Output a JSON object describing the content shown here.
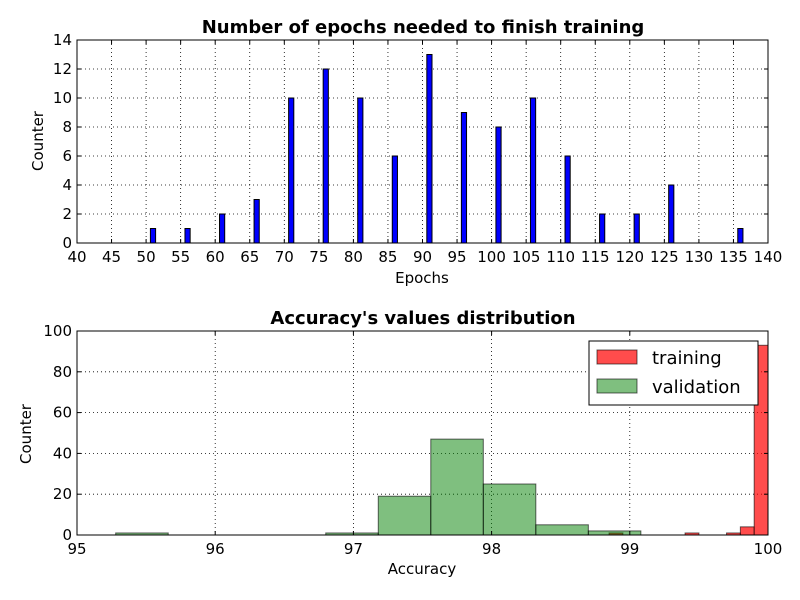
{
  "chart_data": [
    {
      "type": "bar",
      "title": "Number of epochs needed to finish training",
      "xlabel": "Epochs",
      "ylabel": "Counter",
      "xlim": [
        40,
        140
      ],
      "ylim": [
        0,
        14
      ],
      "x_ticks": [
        "40",
        "45",
        "50",
        "55",
        "60",
        "65",
        "70",
        "75",
        "80",
        "85",
        "90",
        "95",
        "100",
        "105",
        "110",
        "115",
        "120",
        "125",
        "130",
        "135",
        "140"
      ],
      "y_ticks": [
        "0",
        "2",
        "4",
        "6",
        "8",
        "10",
        "12",
        "14"
      ],
      "grid": true,
      "bar_color": "#0000ff",
      "x": [
        51,
        56,
        61,
        66,
        71,
        76,
        81,
        86,
        91,
        96,
        101,
        106,
        111,
        116,
        121,
        126,
        136
      ],
      "values": [
        1,
        1,
        2,
        3,
        10,
        12,
        10,
        6,
        13,
        9,
        8,
        10,
        6,
        2,
        2,
        4,
        1
      ]
    },
    {
      "type": "histogram",
      "title": "Accuracy's values distribution",
      "xlabel": "Accuracy",
      "ylabel": "Counter",
      "xlim": [
        95,
        100
      ],
      "ylim": [
        0,
        100
      ],
      "x_ticks": [
        "95",
        "96",
        "97",
        "98",
        "99",
        "100"
      ],
      "y_ticks": [
        "0",
        "20",
        "40",
        "60",
        "80",
        "100"
      ],
      "grid": true,
      "legend_position": "top-right",
      "series": [
        {
          "name": "training",
          "color": "#ff0000",
          "bins": [
            [
              98.85,
              98.95,
              1
            ],
            [
              99.4,
              99.5,
              1
            ],
            [
              99.7,
              99.8,
              1
            ],
            [
              99.8,
              99.9,
              4
            ],
            [
              99.9,
              100.0,
              93
            ]
          ]
        },
        {
          "name": "validation",
          "color": "#008000",
          "bins": [
            [
              95.28,
              95.66,
              1
            ],
            [
              96.8,
              97.18,
              1
            ],
            [
              97.18,
              97.56,
              19
            ],
            [
              97.56,
              97.94,
              47
            ],
            [
              97.94,
              98.32,
              25
            ],
            [
              98.32,
              98.7,
              5
            ],
            [
              98.7,
              99.08,
              2
            ]
          ]
        }
      ]
    }
  ]
}
